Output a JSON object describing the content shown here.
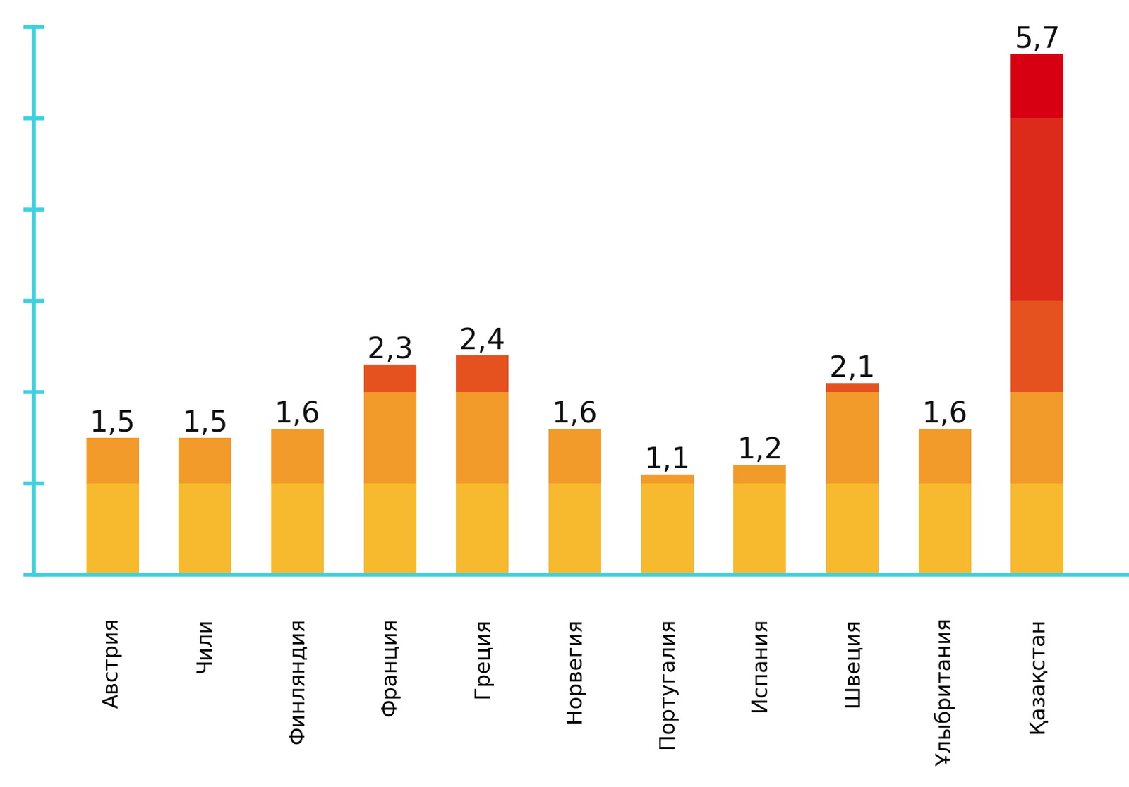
{
  "chart_data": {
    "type": "bar",
    "categories": [
      "Австрия",
      "Чили",
      "Финляндия",
      "Франция",
      "Греция",
      "Норвегия",
      "Португалия",
      "Испания",
      "Швеция",
      "Ұлыбритания",
      "Қазақстан"
    ],
    "values": [
      1.5,
      1.5,
      1.6,
      2.3,
      2.4,
      1.6,
      1.1,
      1.2,
      2.1,
      1.6,
      5.7
    ],
    "value_labels": [
      "1,5",
      "1,5",
      "1,6",
      "2,3",
      "2,4",
      "1,6",
      "1,1",
      "1,2",
      "2,1",
      "1,6",
      "5,7"
    ],
    "ylim": [
      0,
      6
    ],
    "yticks": [
      0,
      1,
      2,
      3,
      4,
      5,
      6
    ],
    "data_labels": true,
    "tick_labels": "x",
    "grid": false
  }
}
